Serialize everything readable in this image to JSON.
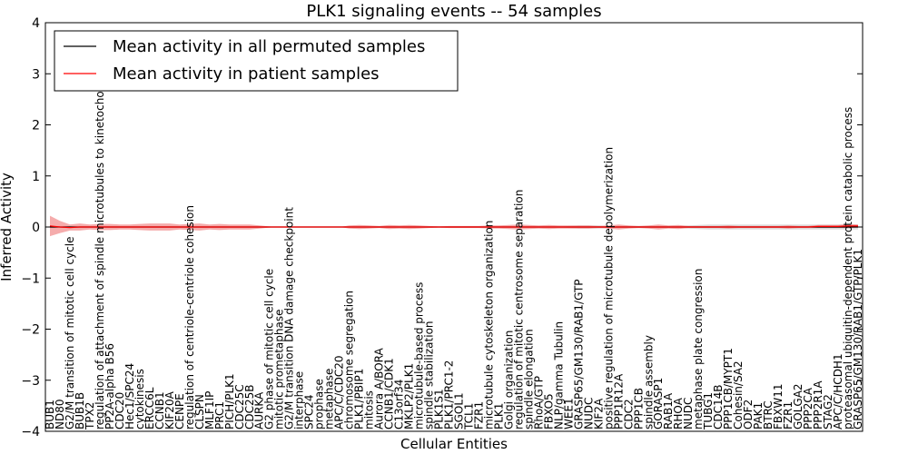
{
  "chart_data": {
    "type": "line",
    "title": "PLK1 signaling events -- 54 samples",
    "xlabel": "Cellular Entities",
    "ylabel": "Inferred Activity",
    "ylim": [
      -4,
      4
    ],
    "yticks": [
      -4,
      -3,
      -2,
      -1,
      0,
      1,
      2,
      3,
      4
    ],
    "grid": false,
    "legend_position": "top-left",
    "categories": [
      "BUB1",
      "ND80",
      "G2/M transition of mitotic cell cycle",
      "BUB1B",
      "TPX2",
      "regulation of attachment of spindle microtubules to kinetochore",
      "PP2A-alpha B56",
      "CDC20",
      "Hec1/SPC24",
      "cytokinesis",
      "ERCC6L",
      "CCNB1",
      "KIF20A",
      "CENPE",
      "regulation of centriole-centriole cohesion",
      "CLSPN",
      "MLF1IP",
      "PRC1",
      "PICH/PLK1",
      "CDC25C",
      "CDC25B",
      "AURKA",
      "G2 phase of mitotic cell cycle",
      "mitotic prometaphase",
      "G2/M transition DNA damage checkpoint",
      "interphase",
      "SPC24",
      "prophase",
      "metaphase",
      "APC/C/CDC20",
      "chromosome segregation",
      "PLK1/PBIP1",
      "mitosis",
      "Aurora A/BORA",
      "CCNB1/CDK1",
      "C13orf34",
      "MKLP2/PLK1",
      "microtubule-based process",
      "spindle stabilization",
      "PLK1S1",
      "PLK1/PRC1-2",
      "SGOL1",
      "TCL1",
      "FZR1",
      "microtubule cytoskeleton organization",
      "PLK1",
      "Golgi organization",
      "regulation of mitotic centrosome separation",
      "spindle elongation",
      "RhoA/GTP",
      "FBXO5",
      "NLP/gamma Tubulin",
      "WEE1",
      "GRASP65/GM130/RAB1/GTP",
      "NUDC",
      "KIF2A",
      "positive regulation of microtubule depolymerization",
      "PPP1R12A",
      "CDC2",
      "PPP1CB",
      "spindle assembly",
      "GORASP1",
      "RAB1A",
      "RHOA",
      "NUDC",
      "metaphase plate congression",
      "TUBG1",
      "CDC14B",
      "PPP1CB/MYPT1",
      "Cohesin/SA2",
      "ODF2",
      "PAK1",
      "BTRC",
      "FBXW11",
      "FZR1",
      "GOLGA2",
      "PPP2CA",
      "PPP2R1A",
      "STAG2",
      "APC/C/HCDH1",
      "proteasomal ubiquitin-dependent protein catabolic process",
      "GRASP65/GM130/RAB1/GTP/PLK1"
    ],
    "series": [
      {
        "name": "Mean activity in all permuted samples",
        "color": "#000000",
        "values": [
          0,
          0,
          0,
          0,
          0,
          0,
          0,
          0,
          0,
          0,
          0,
          0,
          0,
          0,
          0,
          0,
          0,
          0,
          0,
          0,
          0,
          0,
          0,
          0,
          0,
          0,
          0,
          0,
          0,
          0,
          0,
          0,
          0,
          0,
          0,
          0,
          0,
          0,
          0,
          0,
          0,
          0,
          0,
          0,
          0,
          0,
          0,
          0,
          0,
          0,
          0,
          0,
          0,
          0,
          0,
          0,
          0,
          0,
          0,
          0,
          0,
          0,
          0,
          0,
          0,
          0,
          0,
          0,
          0,
          0,
          0,
          0,
          0,
          0,
          0,
          0,
          0,
          0,
          0,
          0,
          0,
          0
        ],
        "band": [
          0,
          0,
          0,
          0,
          0,
          0,
          0,
          0,
          0,
          0,
          0,
          0,
          0,
          0,
          0,
          0,
          0,
          0,
          0,
          0,
          0,
          0,
          0,
          0,
          0,
          0,
          0,
          0,
          0,
          0,
          0,
          0,
          0,
          0,
          0,
          0,
          0,
          0,
          0,
          0,
          0,
          0,
          0,
          0,
          0,
          0,
          0,
          0,
          0,
          0,
          0,
          0,
          0.02,
          0.03,
          0.03,
          0.03,
          0.02,
          0.02,
          0.02,
          0.02,
          0.02,
          0.02,
          0.02,
          0.02,
          0.03,
          0.04,
          0.05,
          0.05,
          0.05,
          0.05,
          0.05,
          0.05,
          0.05,
          0.05,
          0.05,
          0.05,
          0.05,
          0.05,
          0.05,
          0.05,
          0.05,
          0.05
        ]
      },
      {
        "name": "Mean activity in patient samples",
        "color": "#ff0000",
        "values": [
          0.02,
          0,
          -0.01,
          0,
          0,
          0,
          0,
          0,
          0,
          0,
          0,
          0,
          0,
          0,
          0,
          0,
          0,
          0,
          0,
          0,
          0,
          0,
          0,
          0,
          0,
          0,
          0,
          0,
          0,
          0,
          0,
          0,
          0,
          0,
          0,
          0,
          0,
          0,
          0,
          0,
          0,
          0,
          0,
          0,
          0,
          0,
          0,
          0,
          0,
          0,
          0,
          0,
          0,
          0,
          0,
          0,
          0,
          0,
          0,
          0,
          0,
          0,
          0,
          0,
          0,
          0,
          0,
          0,
          0,
          0,
          0,
          0,
          0,
          0,
          0,
          0,
          0,
          0.01,
          0.01,
          0.01,
          0.02,
          0.02
        ],
        "band": [
          0.2,
          0.12,
          0.06,
          0.07,
          0.05,
          0.06,
          0.06,
          0.05,
          0.05,
          0.06,
          0.07,
          0.07,
          0.07,
          0.05,
          0.06,
          0.07,
          0.05,
          0.06,
          0.05,
          0.05,
          0.05,
          0.03,
          0.01,
          0,
          0,
          0,
          0,
          0,
          0,
          0,
          0.03,
          0.04,
          0.03,
          0.02,
          0.04,
          0.03,
          0.04,
          0.03,
          0.02,
          0.01,
          0.02,
          0.02,
          0.02,
          0.02,
          0.03,
          0.03,
          0.04,
          0.05,
          0.04,
          0.03,
          0.04,
          0.03,
          0.03,
          0.03,
          0.03,
          0.02,
          0.03,
          0.05,
          0.03,
          0.02,
          0.03,
          0.05,
          0.03,
          0.04,
          0.02,
          0.02,
          0.02,
          0.02,
          0.03,
          0.02,
          0.02,
          0.02,
          0.02,
          0.02,
          0.03,
          0.02,
          0.02,
          0.03,
          0.03,
          0.03,
          0.04,
          0.03
        ]
      }
    ]
  }
}
